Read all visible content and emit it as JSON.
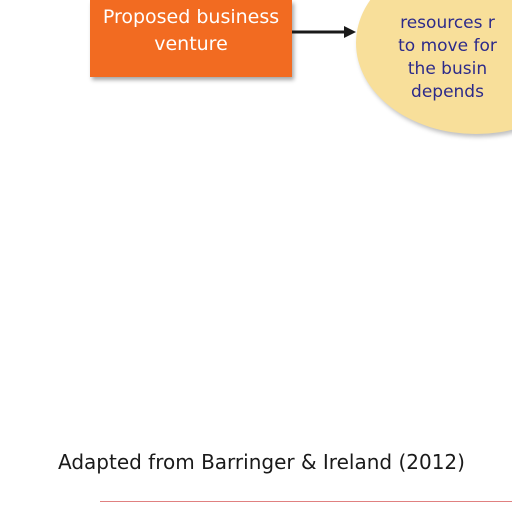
{
  "diagram": {
    "venture_box": {
      "label_line1": "Proposed business",
      "label_line2": "venture"
    },
    "resource_oval": {
      "lines": [
        "",
        "resources r",
        "to move for",
        "the busin",
        "depends"
      ]
    },
    "citation": "Adapted from Barringer & Ireland (2012)"
  }
}
